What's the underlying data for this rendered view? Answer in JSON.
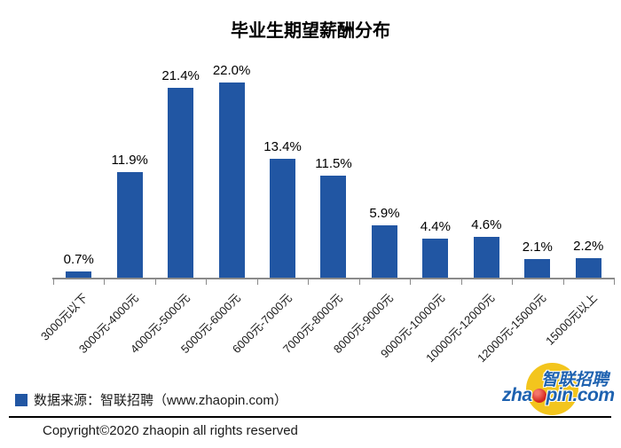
{
  "title": "毕业生期望薪酬分布",
  "chart_data": {
    "type": "bar",
    "title": "毕业生期望薪酬分布",
    "categories": [
      "3000元以下",
      "3000元-4000元",
      "4000元-5000元",
      "5000元-6000元",
      "6000元-7000元",
      "7000元-8000元",
      "8000元-9000元",
      "9000元-10000元",
      "10000元-12000元",
      "12000元-15000元",
      "15000元以上"
    ],
    "values": [
      0.7,
      11.9,
      21.4,
      22.0,
      13.4,
      11.5,
      5.9,
      4.4,
      4.6,
      2.1,
      2.2
    ],
    "value_labels": [
      "0.7%",
      "11.9%",
      "21.4%",
      "22.0%",
      "13.4%",
      "11.5%",
      "5.9%",
      "4.4%",
      "4.6%",
      "2.1%",
      "2.2%"
    ],
    "xlabel": "",
    "ylabel": "",
    "ylim": [
      0,
      25
    ],
    "grid": false,
    "legend_position": "none",
    "bar_color": "#2156A3",
    "axis_color": "#8a8a8a",
    "label_color": "#000000"
  },
  "legend": {
    "source_label": "数据来源：智联招聘（www.zhaopin.com）",
    "swatch_color": "#2156A3"
  },
  "footer": {
    "copyright": "Copyright©2020 zhaopin all rights reserved"
  },
  "logo": {
    "cn_text": "智联招聘",
    "domain_prefix": "zha",
    "domain_suffix": "pin.com",
    "dot_icon": "red-ball",
    "circle_color": "#F3C51D",
    "text_color": "#1E62B0",
    "dot_color": "#D5281E"
  }
}
